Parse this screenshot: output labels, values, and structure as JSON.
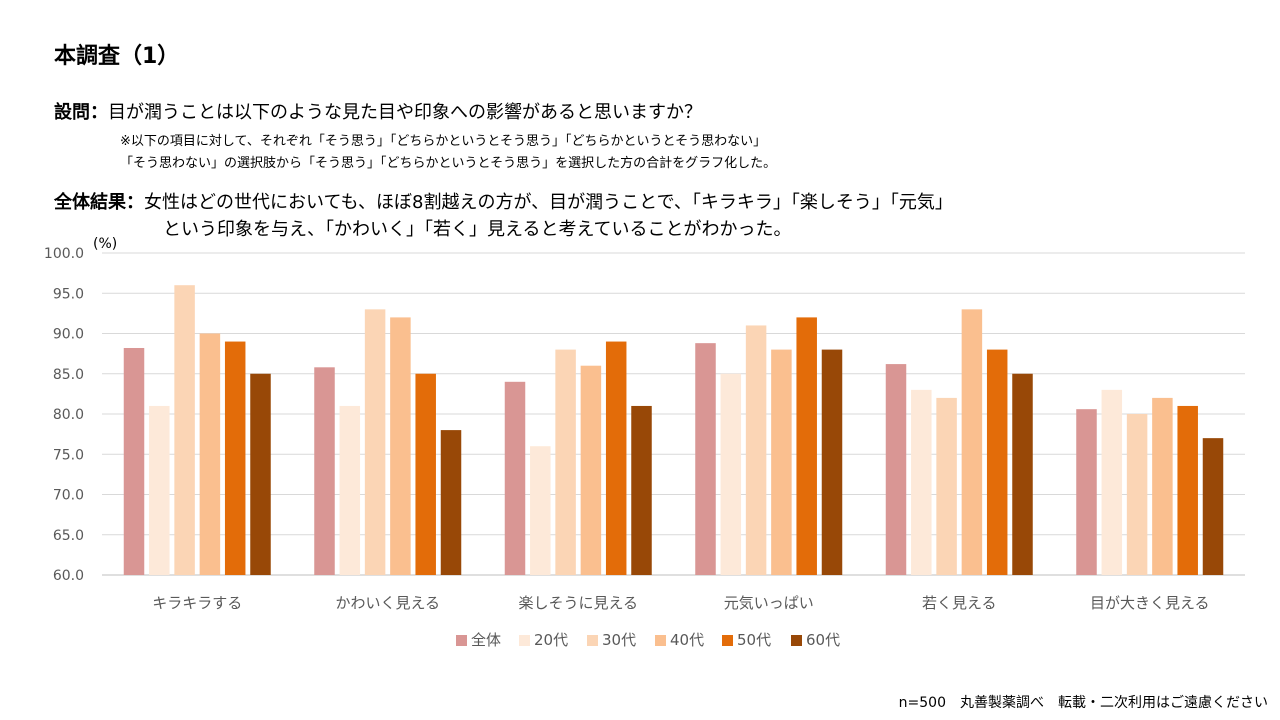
{
  "header": {
    "title": "本調査（1）",
    "question_label": "設問：",
    "question_text": "目が潤うことは以下のような見た目や印象への影響があると思いますか？",
    "note_line1": "※以下の項目に対して、それぞれ「そう思う」「どちらかというとそう思う」「どちらかというとそう思わない」",
    "note_line2": "「そう思わない」の選択肢から「そう思う」「どちらかというとそう思う」を選択した方の合計をグラフ化した。",
    "result_label": "全体結果：",
    "result_line1": "女性はどの世代においても、ほぼ8割越えの方が、目が潤うことで、「キラキラ」「楽しそう」「元気」",
    "result_line2": "という印象を与え、「かわいく」「若く」見えると考えていることがわかった。"
  },
  "footer": {
    "text": "n=500　丸善製薬調べ　転載・二次利用はご遠慮ください"
  },
  "chart_data": {
    "type": "bar",
    "title": "",
    "xlabel": "",
    "ylabel": "(%)",
    "ylim": [
      60,
      100
    ],
    "yticks": [
      "60.0",
      "65.0",
      "70.0",
      "75.0",
      "80.0",
      "85.0",
      "90.0",
      "95.0",
      "100.0"
    ],
    "grid": true,
    "legend_position": "bottom",
    "categories": [
      "キラキラする",
      "かわいく見える",
      "楽しそうに見える",
      "元気いっぱい",
      "若く見える",
      "目が大きく見える"
    ],
    "series": [
      {
        "name": "全体",
        "color": "#d99694",
        "values": [
          88.2,
          85.8,
          84.0,
          88.8,
          86.2,
          80.6
        ]
      },
      {
        "name": "20代",
        "color": "#fde9d9",
        "values": [
          81,
          81,
          76,
          85,
          83,
          83
        ]
      },
      {
        "name": "30代",
        "color": "#fbd5b5",
        "values": [
          96,
          93,
          88,
          91,
          82,
          80
        ]
      },
      {
        "name": "40代",
        "color": "#fabf8f",
        "values": [
          90,
          92,
          86,
          88,
          93,
          82
        ]
      },
      {
        "name": "50代",
        "color": "#e36c09",
        "values": [
          89,
          85,
          89,
          92,
          88,
          81
        ]
      },
      {
        "name": "60代",
        "color": "#984807",
        "values": [
          85,
          78,
          81,
          88,
          85,
          77
        ]
      }
    ]
  }
}
